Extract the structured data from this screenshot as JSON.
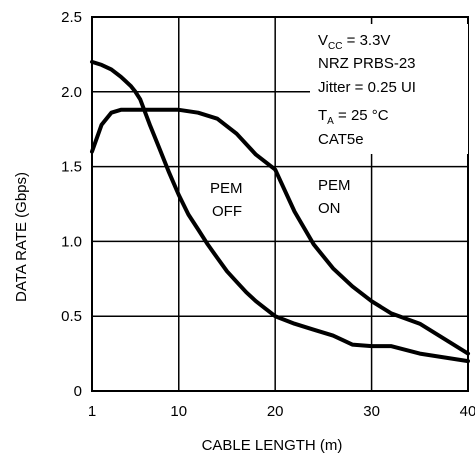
{
  "chart_data": {
    "type": "line",
    "title": "",
    "xlabel": "CABLE LENGTH (m)",
    "ylabel": "DATA RATE (Gbps)",
    "xlim": [
      1,
      40
    ],
    "ylim": [
      0,
      2.5
    ],
    "x_ticks": [
      1,
      10,
      20,
      30,
      40
    ],
    "y_ticks": [
      "0",
      "0.5",
      "1.0",
      "1.5",
      "2.0",
      "2.5"
    ],
    "grid": true,
    "series": [
      {
        "name": "PEM OFF",
        "x": [
          1,
          2,
          3,
          4,
          5,
          5.5,
          6,
          7,
          8,
          9,
          10,
          11,
          12,
          13,
          14,
          15,
          16,
          17,
          18,
          19,
          20,
          22,
          24,
          26,
          27,
          28,
          30,
          32,
          35,
          40
        ],
        "y": [
          2.2,
          2.18,
          2.15,
          2.1,
          2.04,
          2.0,
          1.95,
          1.78,
          1.62,
          1.46,
          1.31,
          1.18,
          1.08,
          0.98,
          0.89,
          0.8,
          0.73,
          0.66,
          0.6,
          0.55,
          0.5,
          0.45,
          0.41,
          0.37,
          0.34,
          0.31,
          0.3,
          0.3,
          0.25,
          0.2
        ]
      },
      {
        "name": "PEM ON",
        "x": [
          1,
          2,
          3,
          4,
          5,
          6,
          8,
          10,
          12,
          14,
          16,
          18,
          20,
          22,
          24,
          26,
          28,
          30,
          32,
          35,
          40
        ],
        "y": [
          1.6,
          1.78,
          1.86,
          1.88,
          1.88,
          1.88,
          1.88,
          1.88,
          1.86,
          1.82,
          1.72,
          1.58,
          1.48,
          1.2,
          0.98,
          0.82,
          0.7,
          0.6,
          0.52,
          0.45,
          0.25
        ]
      }
    ],
    "curve_labels": [
      {
        "line1": "PEM",
        "line2": "OFF"
      },
      {
        "line1": "PEM",
        "line2": "ON"
      }
    ],
    "annotation": {
      "vcc_main": "V",
      "vcc_sub": "CC",
      "vcc_rest": " = 3.3V",
      "line2": "NRZ PRBS-23",
      "line3": "Jitter = 0.25 UI",
      "ta_main": "T",
      "ta_sub": "A",
      "ta_rest": " = 25 °C",
      "line5": "CAT5e"
    }
  }
}
